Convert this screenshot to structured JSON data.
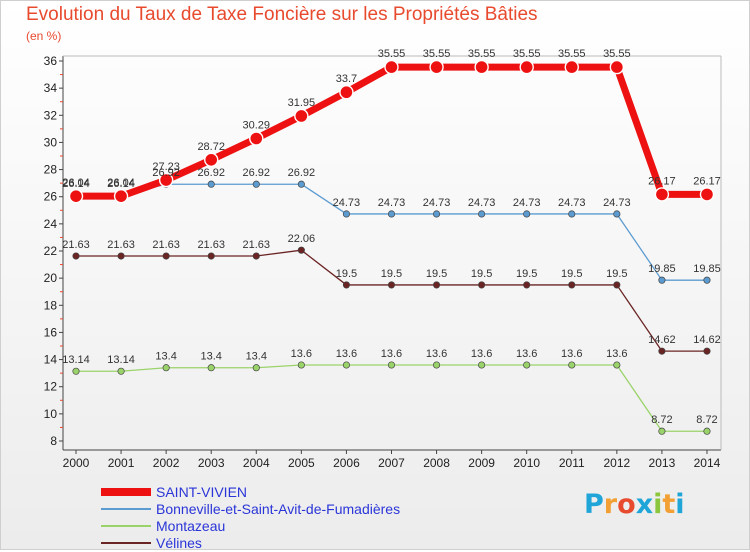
{
  "title": "Evolution du Taux de Taxe Foncière sur les Propriétés Bâties",
  "unit": "(en %)",
  "logo": {
    "text": "Proxiti",
    "colors": [
      "#1fa5d8",
      "#f2a033",
      "#e84a2e",
      "#1fa5d8",
      "#8cc63f",
      "#f2a033",
      "#1fa5d8"
    ]
  },
  "chart_data": {
    "type": "line",
    "title": "Evolution du Taux de Taxe Foncière sur les Propriétés Bâties",
    "ylabel": "(en %)",
    "x": [
      "2000",
      "2001",
      "2002",
      "2003",
      "2004",
      "2005",
      "2006",
      "2007",
      "2008",
      "2009",
      "2010",
      "2011",
      "2012",
      "2013",
      "2014"
    ],
    "ylim": [
      8,
      36
    ],
    "yticks": [
      "8",
      "10",
      "12",
      "14",
      "16",
      "18",
      "20",
      "22",
      "24",
      "26",
      "28",
      "30",
      "32",
      "34",
      "36"
    ],
    "grid": "off",
    "legend": "bottom-left",
    "series": [
      {
        "name": "SAINT-VIVIEN",
        "color": "#ee1111",
        "values": [
          26.04,
          26.04,
          27.23,
          28.72,
          30.29,
          31.95,
          33.7,
          35.55,
          35.55,
          35.55,
          35.55,
          35.55,
          35.55,
          26.17,
          26.17
        ],
        "labels": [
          "26.04",
          "26.04",
          "27.23",
          "28.72",
          "30.29",
          "31.95",
          "33.7",
          "35.55",
          "35.55",
          "35.55",
          "35.55",
          "35.55",
          "35.55",
          "26.17",
          "26.17"
        ]
      },
      {
        "name": "Bonneville-et-Saint-Avit-de-Fumadières",
        "color": "#5b9bd0",
        "values": [
          26.14,
          26.14,
          26.92,
          26.92,
          26.92,
          26.92,
          24.73,
          24.73,
          24.73,
          24.73,
          24.73,
          24.73,
          24.73,
          19.85,
          19.85
        ],
        "labels": [
          "26.14",
          "26.14",
          "26.92",
          "26.92",
          "26.92",
          "26.92",
          "24.73",
          "24.73",
          "24.73",
          "24.73",
          "24.73",
          "24.73",
          "24.73",
          "19.85",
          "19.85"
        ]
      },
      {
        "name": "Montazeau",
        "color": "#9ad36a",
        "values": [
          13.14,
          13.14,
          13.4,
          13.4,
          13.4,
          13.6,
          13.6,
          13.6,
          13.6,
          13.6,
          13.6,
          13.6,
          13.6,
          8.72,
          8.72
        ],
        "labels": [
          "13.14",
          "13.14",
          "13.4",
          "13.4",
          "13.4",
          "13.6",
          "13.6",
          "13.6",
          "13.6",
          "13.6",
          "13.6",
          "13.6",
          "13.6",
          "8.72",
          "8.72"
        ]
      },
      {
        "name": "Vélines",
        "color": "#6b2424",
        "values": [
          21.63,
          21.63,
          21.63,
          21.63,
          21.63,
          22.06,
          19.5,
          19.5,
          19.5,
          19.5,
          19.5,
          19.5,
          19.5,
          14.62,
          14.62
        ],
        "labels": [
          "21.63",
          "21.63",
          "21.63",
          "21.63",
          "21.63",
          "22.06",
          "19.5",
          "19.5",
          "19.5",
          "19.5",
          "19.5",
          "19.5",
          "19.5",
          "14.62",
          "14.62"
        ]
      }
    ]
  }
}
